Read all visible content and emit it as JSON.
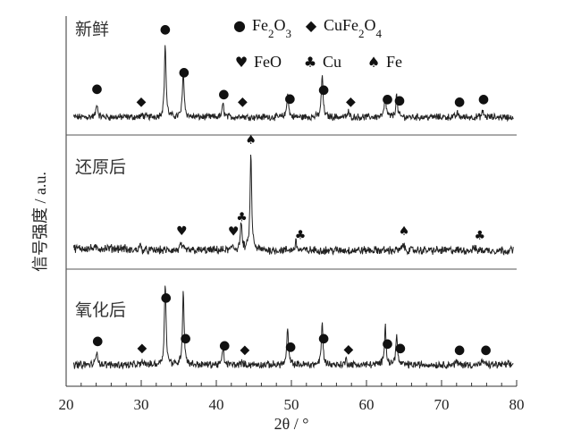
{
  "chart_data": {
    "type": "line",
    "title": "",
    "xlabel": "2θ / °",
    "ylabel": "信号强度 / a.u.",
    "xlim": [
      20,
      80
    ],
    "xticks": [
      "20",
      "30",
      "40",
      "50",
      "60",
      "70",
      "80"
    ],
    "grid": false,
    "legend": {
      "placement": "top",
      "entries": [
        {
          "id": "fe2o3",
          "symbol": "circle",
          "glyph": "●",
          "label": "Fe2O3",
          "sub": [
            "2",
            "3"
          ]
        },
        {
          "id": "cufe2o4",
          "symbol": "diamond",
          "glyph": "◆",
          "label": "CuFe2O4",
          "sub": [
            "2",
            "4"
          ]
        },
        {
          "id": "feo",
          "symbol": "heart",
          "glyph": "♥",
          "label": "FeO"
        },
        {
          "id": "cu",
          "symbol": "club",
          "glyph": "♣",
          "label": "Cu"
        },
        {
          "id": "fe",
          "symbol": "spade",
          "glyph": "♠",
          "label": "Fe"
        }
      ]
    },
    "series": [
      {
        "name": "新鲜",
        "peaks": [
          {
            "x": 24.1,
            "h": 0.17,
            "phase": "fe2o3"
          },
          {
            "x": 30.2,
            "h": 0.03,
            "phase": "cufe2o4"
          },
          {
            "x": 33.2,
            "h": 0.89,
            "phase": "fe2o3"
          },
          {
            "x": 35.6,
            "h": 0.53,
            "phase": "fe2o3"
          },
          {
            "x": 35.6,
            "h": 0.05,
            "phase": ""
          },
          {
            "x": 40.9,
            "h": 0.16,
            "phase": "fe2o3"
          },
          {
            "x": 43.3,
            "h": 0.03,
            "phase": "cufe2o4"
          },
          {
            "x": 49.5,
            "h": 0.29,
            "phase": "fe2o3"
          },
          {
            "x": 54.1,
            "h": 0.52,
            "phase": "fe2o3"
          },
          {
            "x": 57.6,
            "h": 0.06,
            "phase": "cufe2o4"
          },
          {
            "x": 62.5,
            "h": 0.26,
            "phase": "fe2o3"
          },
          {
            "x": 64.0,
            "h": 0.26,
            "phase": "fe2o3"
          },
          {
            "x": 72.1,
            "h": 0.05,
            "phase": "fe2o3"
          },
          {
            "x": 75.5,
            "h": 0.07,
            "phase": "fe2o3"
          }
        ],
        "markers": [
          {
            "x": 24.1,
            "phase": "fe2o3"
          },
          {
            "x": 30.0,
            "phase": "cufe2o4"
          },
          {
            "x": 33.2,
            "phase": "fe2o3"
          },
          {
            "x": 35.7,
            "phase": "fe2o3"
          },
          {
            "x": 41.0,
            "phase": "fe2o3"
          },
          {
            "x": 43.5,
            "phase": "cufe2o4"
          },
          {
            "x": 49.8,
            "phase": "fe2o3"
          },
          {
            "x": 54.3,
            "phase": "fe2o3"
          },
          {
            "x": 57.9,
            "phase": "cufe2o4"
          },
          {
            "x": 62.8,
            "phase": "fe2o3"
          },
          {
            "x": 64.4,
            "phase": "fe2o3"
          },
          {
            "x": 72.4,
            "phase": "fe2o3"
          },
          {
            "x": 75.6,
            "phase": "fe2o3"
          }
        ]
      },
      {
        "name": "还原后",
        "peaks": [
          {
            "x": 29.8,
            "h": 0.06,
            "phase": ""
          },
          {
            "x": 35.3,
            "h": 0.07,
            "phase": "feo"
          },
          {
            "x": 42.2,
            "h": 0.05,
            "phase": "feo"
          },
          {
            "x": 43.3,
            "h": 0.28,
            "phase": "cu"
          },
          {
            "x": 44.6,
            "h": 0.97,
            "phase": "fe"
          },
          {
            "x": 50.6,
            "h": 0.09,
            "phase": "cu"
          },
          {
            "x": 64.9,
            "h": 0.07,
            "phase": "fe"
          },
          {
            "x": 74.3,
            "h": 0.03,
            "phase": "cu"
          }
        ],
        "markers": [
          {
            "x": 35.4,
            "phase": "feo"
          },
          {
            "x": 42.3,
            "phase": "feo"
          },
          {
            "x": 43.4,
            "phase": "cu"
          },
          {
            "x": 44.6,
            "phase": "fe"
          },
          {
            "x": 51.2,
            "phase": "cu"
          },
          {
            "x": 65.0,
            "phase": "fe"
          },
          {
            "x": 75.1,
            "phase": "cu"
          }
        ]
      },
      {
        "name": "氧化后",
        "peaks": [
          {
            "x": 24.1,
            "h": 0.17,
            "phase": "fe2o3"
          },
          {
            "x": 30.2,
            "h": 0.04,
            "phase": "cufe2o4"
          },
          {
            "x": 33.2,
            "h": 0.95,
            "phase": "fe2o3"
          },
          {
            "x": 35.6,
            "h": 0.85,
            "phase": "fe2o3"
          },
          {
            "x": 40.9,
            "h": 0.18,
            "phase": "fe2o3"
          },
          {
            "x": 43.4,
            "h": 0.03,
            "phase": "cufe2o4"
          },
          {
            "x": 49.5,
            "h": 0.41,
            "phase": "fe2o3"
          },
          {
            "x": 54.1,
            "h": 0.47,
            "phase": "fe2o3"
          },
          {
            "x": 57.3,
            "h": 0.06,
            "phase": "cufe2o4"
          },
          {
            "x": 62.5,
            "h": 0.46,
            "phase": "fe2o3"
          },
          {
            "x": 64.0,
            "h": 0.35,
            "phase": "fe2o3"
          },
          {
            "x": 72.0,
            "h": 0.04,
            "phase": "fe2o3"
          },
          {
            "x": 75.5,
            "h": 0.05,
            "phase": "fe2o3"
          }
        ],
        "markers": [
          {
            "x": 24.2,
            "phase": "fe2o3"
          },
          {
            "x": 30.1,
            "phase": "cufe2o4"
          },
          {
            "x": 33.3,
            "phase": "fe2o3"
          },
          {
            "x": 35.9,
            "phase": "fe2o3"
          },
          {
            "x": 41.1,
            "phase": "fe2o3"
          },
          {
            "x": 43.8,
            "phase": "cufe2o4"
          },
          {
            "x": 49.9,
            "phase": "fe2o3"
          },
          {
            "x": 54.3,
            "phase": "fe2o3"
          },
          {
            "x": 57.6,
            "phase": "cufe2o4"
          },
          {
            "x": 62.8,
            "phase": "fe2o3"
          },
          {
            "x": 64.5,
            "phase": "fe2o3"
          },
          {
            "x": 72.4,
            "phase": "fe2o3"
          },
          {
            "x": 75.9,
            "phase": "fe2o3"
          }
        ]
      }
    ]
  }
}
